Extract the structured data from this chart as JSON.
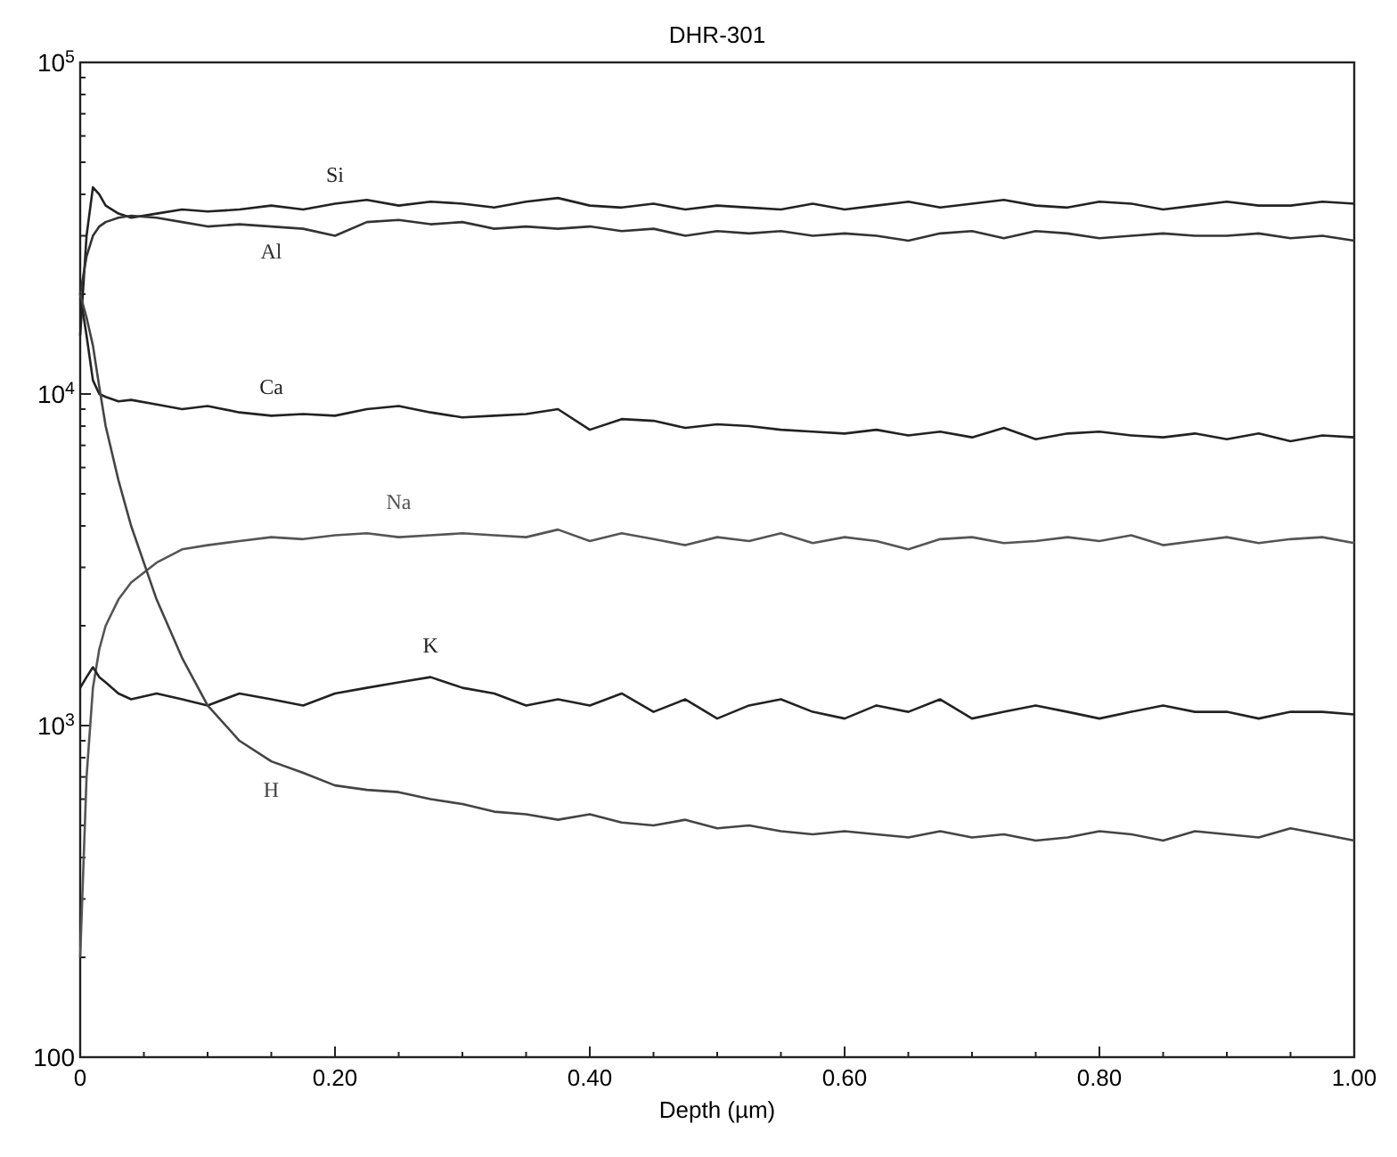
{
  "chart_data": {
    "type": "line",
    "title": "DHR-301",
    "xlabel": "Depth (µm)",
    "log": "y",
    "grid": false,
    "marker": "none",
    "line_style": "solid",
    "xlim": [
      0,
      1
    ],
    "ylim": [
      100,
      100000
    ],
    "xticks": [
      {
        "value": 0,
        "label": "0"
      },
      {
        "value": 0.05,
        "label": null
      },
      {
        "value": 0.1,
        "label": null
      },
      {
        "value": 0.15,
        "label": null
      },
      {
        "value": 0.2,
        "label": "0.20"
      },
      {
        "value": 0.25,
        "label": null
      },
      {
        "value": 0.3,
        "label": null
      },
      {
        "value": 0.35,
        "label": null
      },
      {
        "value": 0.4,
        "label": "0.40"
      },
      {
        "value": 0.45,
        "label": null
      },
      {
        "value": 0.5,
        "label": null
      },
      {
        "value": 0.55,
        "label": null
      },
      {
        "value": 0.6,
        "label": "0.60"
      },
      {
        "value": 0.65,
        "label": null
      },
      {
        "value": 0.7,
        "label": null
      },
      {
        "value": 0.75,
        "label": null
      },
      {
        "value": 0.8,
        "label": "0.80"
      },
      {
        "value": 0.85,
        "label": null
      },
      {
        "value": 0.9,
        "label": null
      },
      {
        "value": 0.95,
        "label": null
      },
      {
        "value": 1,
        "label": "1.00"
      }
    ],
    "yticks": [
      100,
      {
        "value": 200,
        "label": null
      },
      {
        "value": 300,
        "label": null
      },
      {
        "value": 400,
        "label": null
      },
      {
        "value": 500,
        "label": null
      },
      {
        "value": 600,
        "label": null
      },
      {
        "value": 700,
        "label": null
      },
      {
        "value": 800,
        "label": null
      },
      {
        "value": 900,
        "label": null
      },
      {
        "value": 1000,
        "label": "10$^{3}$"
      },
      {
        "value": 2000,
        "label": null
      },
      {
        "value": 3000,
        "label": null
      },
      {
        "value": 4000,
        "label": null
      },
      {
        "value": 5000,
        "label": null
      },
      {
        "value": 6000,
        "label": null
      },
      {
        "value": 7000,
        "label": null
      },
      {
        "value": 8000,
        "label": null
      },
      {
        "value": 9000,
        "label": null
      },
      {
        "value": 10000,
        "label": "10$^{4}$"
      },
      {
        "value": 20000,
        "label": null
      },
      {
        "value": 30000,
        "label": null
      },
      {
        "value": 40000,
        "label": null
      },
      {
        "value": 50000,
        "label": null
      },
      {
        "value": 60000,
        "label": null
      },
      {
        "value": 70000,
        "label": null
      },
      {
        "value": 80000,
        "label": null
      },
      {
        "value": 90000,
        "label": null
      },
      {
        "value": 100000,
        "label": "10$^{5}$"
      }
    ],
    "x": [
      0,
      0.005,
      0.01,
      0.015,
      0.02,
      0.03,
      0.04,
      0.06,
      0.08,
      0.1,
      0.125,
      0.15,
      0.175,
      0.2,
      0.225,
      0.25,
      0.275,
      0.3,
      0.325,
      0.35,
      0.375,
      0.4,
      0.425,
      0.45,
      0.475,
      0.5,
      0.525,
      0.55,
      0.575,
      0.6,
      0.625,
      0.65,
      0.675,
      0.7,
      0.725,
      0.75,
      0.775,
      0.8,
      0.825,
      0.85,
      0.875,
      0.9,
      0.925,
      0.95,
      0.975,
      1.0
    ],
    "series": [
      {
        "name": "Si",
        "color": "#222222",
        "values": [
          15000,
          30000,
          42000,
          40000,
          37000,
          35000,
          34000,
          35000,
          36000,
          35500,
          36000,
          37000,
          36000,
          37500,
          38500,
          37000,
          38000,
          37500,
          36500,
          38000,
          39000,
          37000,
          36500,
          37500,
          36000,
          37000,
          36500,
          36000,
          37500,
          36000,
          37000,
          38000,
          36500,
          37500,
          38500,
          37000,
          36500,
          38000,
          37500,
          36000,
          37000,
          38000,
          37000,
          37000,
          38000,
          37500
        ]
      },
      {
        "name": "Al",
        "color": "#333333",
        "values": [
          20000,
          26000,
          30000,
          32000,
          33000,
          34000,
          34500,
          34000,
          33000,
          32000,
          32500,
          32000,
          31500,
          30000,
          33000,
          33500,
          32500,
          33000,
          31500,
          32000,
          31500,
          32000,
          31000,
          31500,
          30000,
          31000,
          30500,
          31000,
          30000,
          30500,
          30000,
          29000,
          30500,
          31000,
          29500,
          31000,
          30500,
          29500,
          30000,
          30500,
          30000,
          30000,
          30500,
          29500,
          30000,
          29000
        ]
      },
      {
        "name": "Ca",
        "color": "#222222",
        "values": [
          20000,
          15000,
          11000,
          10000,
          9800,
          9500,
          9600,
          9300,
          9000,
          9200,
          8800,
          8600,
          8700,
          8600,
          9000,
          9200,
          8800,
          8500,
          8600,
          8700,
          9000,
          7800,
          8400,
          8300,
          7900,
          8100,
          8000,
          7800,
          7700,
          7600,
          7800,
          7500,
          7700,
          7400,
          7900,
          7300,
          7600,
          7700,
          7500,
          7400,
          7600,
          7300,
          7600,
          7200,
          7500,
          7400
        ]
      },
      {
        "name": "Na",
        "color": "#555555",
        "values": [
          200,
          700,
          1300,
          1700,
          2000,
          2400,
          2700,
          3100,
          3400,
          3500,
          3600,
          3700,
          3650,
          3750,
          3800,
          3700,
          3750,
          3800,
          3750,
          3700,
          3900,
          3600,
          3800,
          3650,
          3500,
          3700,
          3600,
          3800,
          3550,
          3700,
          3600,
          3400,
          3650,
          3700,
          3550,
          3600,
          3700,
          3600,
          3750,
          3500,
          3600,
          3700,
          3550,
          3650,
          3700,
          3550
        ]
      },
      {
        "name": "K",
        "color": "#222222",
        "values": [
          1300,
          1400,
          1500,
          1400,
          1350,
          1250,
          1200,
          1250,
          1200,
          1150,
          1250,
          1200,
          1150,
          1250,
          1300,
          1350,
          1400,
          1300,
          1250,
          1150,
          1200,
          1150,
          1250,
          1100,
          1200,
          1050,
          1150,
          1200,
          1100,
          1050,
          1150,
          1100,
          1200,
          1050,
          1100,
          1150,
          1100,
          1050,
          1100,
          1150,
          1100,
          1100,
          1050,
          1100,
          1100,
          1080
        ]
      },
      {
        "name": "H",
        "color": "#444444",
        "values": [
          20000,
          17000,
          14000,
          10500,
          8000,
          5500,
          4000,
          2400,
          1600,
          1150,
          900,
          780,
          720,
          660,
          640,
          630,
          600,
          580,
          550,
          540,
          520,
          540,
          510,
          500,
          520,
          490,
          500,
          480,
          470,
          480,
          470,
          460,
          480,
          460,
          470,
          450,
          460,
          480,
          470,
          450,
          480,
          470,
          460,
          490,
          470,
          450
        ]
      }
    ]
  }
}
